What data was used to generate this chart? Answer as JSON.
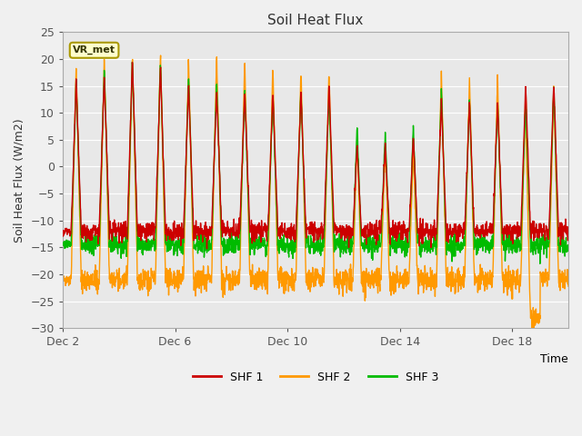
{
  "title": "Soil Heat Flux",
  "ylabel": "Soil Heat Flux (W/m2)",
  "xlabel": "Time",
  "ylim": [
    -30,
    25
  ],
  "yticks": [
    -30,
    -25,
    -20,
    -15,
    -10,
    -5,
    0,
    5,
    10,
    15,
    20,
    25
  ],
  "xtick_labels": [
    "Dec 2",
    "Dec 6",
    "Dec 10",
    "Dec 14",
    "Dec 18"
  ],
  "xtick_positions": [
    0,
    4,
    8,
    12,
    16
  ],
  "xlim": [
    0,
    18
  ],
  "colors": {
    "SHF 1": "#cc0000",
    "SHF 2": "#ff9900",
    "SHF 3": "#00bb00"
  },
  "bg_color": "#e8e8e8",
  "fig_bg_color": "#f0f0f0",
  "annotation_text": "VR_met",
  "annotation_facecolor": "#ffffcc",
  "annotation_edgecolor": "#aa9900",
  "grid_color": "#ffffff",
  "linewidth": 1.0,
  "n_points": 2000
}
